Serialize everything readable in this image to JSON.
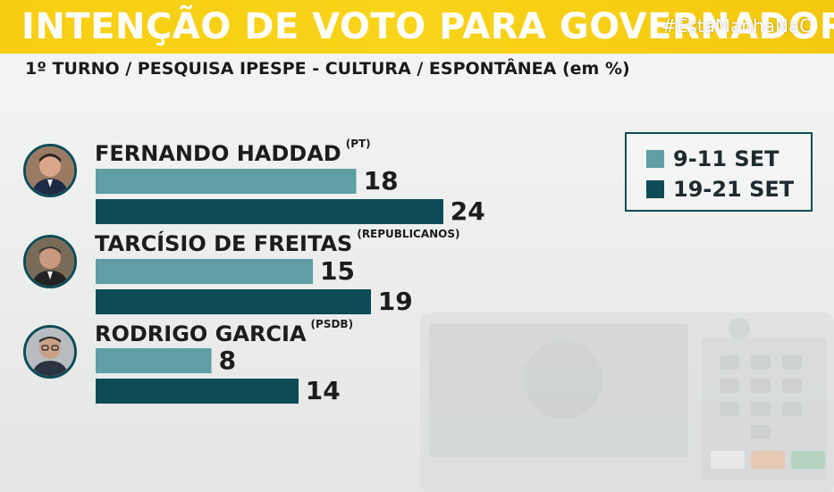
{
  "title": "INTENÇÃO DE VOTO PARA GOVERNADOR",
  "hashtag": "#EstaManhaNaC",
  "subtitle": "1º TURNO / PESQUISA IPESPE - CULTURA / ESPONTÂNEA (em %)",
  "colors": {
    "series_1": "#5f9ea2",
    "series_2": "#0d4c55",
    "title_bar": "#f7ce12"
  },
  "chart_data": {
    "type": "bar",
    "orientation": "horizontal",
    "categories": [
      "FERNANDO HADDAD",
      "TARCÍSIO DE FREITAS",
      "RODRIGO GARCIA"
    ],
    "parties": [
      "(PT)",
      "(REPUBLICANOS)",
      "(PSDB)"
    ],
    "series": [
      {
        "name": "9-11 SET",
        "values": [
          18,
          15,
          8
        ]
      },
      {
        "name": "19-21 SET",
        "values": [
          24,
          19,
          14
        ]
      }
    ],
    "legend_position": "top-right"
  }
}
